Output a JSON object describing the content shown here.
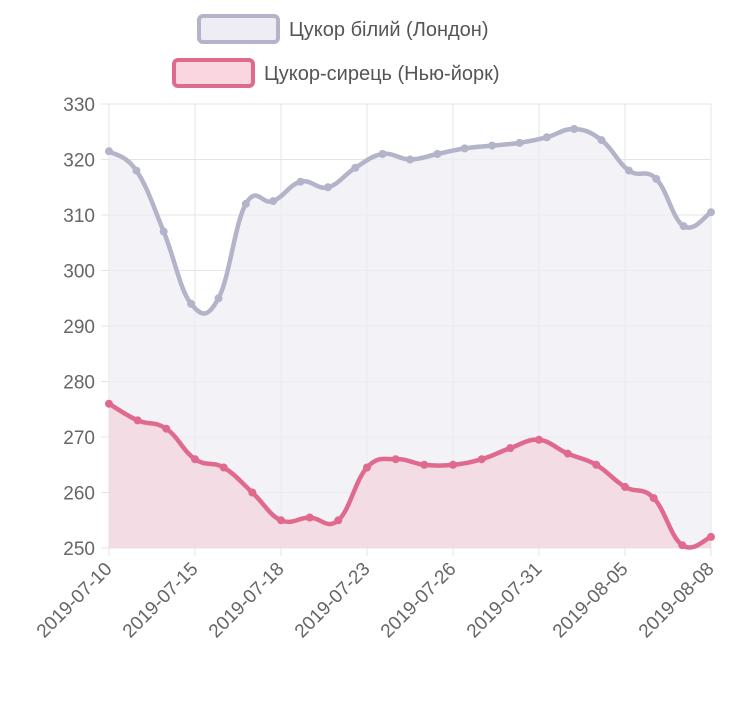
{
  "chart_data": {
    "type": "line",
    "x_tick_labels": [
      "2019-07-10",
      "2019-07-15",
      "2019-07-18",
      "2019-07-23",
      "2019-07-26",
      "2019-07-31",
      "2019-08-05",
      "2019-08-08"
    ],
    "ylim": [
      250,
      330
    ],
    "y_ticks": [
      250,
      260,
      270,
      280,
      290,
      300,
      310,
      320,
      330
    ],
    "grid": true,
    "legend_position": "top",
    "series": [
      {
        "name": "Цукор білий (Лондон)",
        "color": "#b3b3c9",
        "fill_color": "#eeedf4",
        "values": [
          321.5,
          318,
          307,
          294,
          295,
          312,
          312.5,
          316,
          315,
          318.5,
          321,
          320,
          321,
          322,
          322.5,
          323,
          324,
          325.5,
          323.5,
          318,
          316.5,
          308,
          310.5
        ]
      },
      {
        "name": "Цукор-сирець (Нью-йорк)",
        "color": "#e06a8d",
        "fill_color": "#f2d6de",
        "values": [
          276,
          273,
          271.5,
          266,
          264.5,
          260,
          255,
          255.5,
          255,
          264.5,
          266,
          265,
          265,
          266,
          268,
          269.5,
          267,
          265,
          261,
          259,
          250.5,
          252
        ]
      }
    ]
  }
}
